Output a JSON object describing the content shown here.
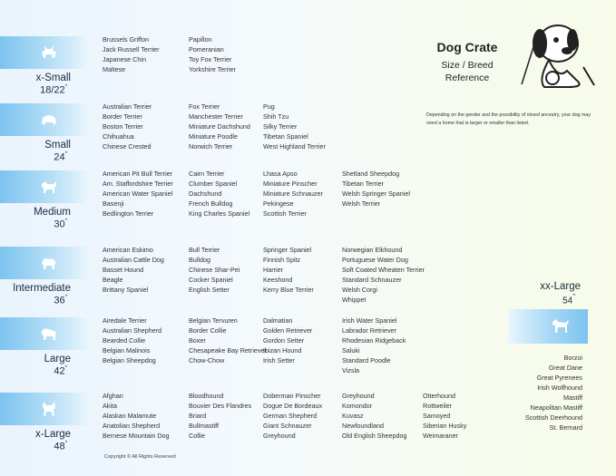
{
  "title": {
    "main": "Dog Crate",
    "sub1": "Size / Breed",
    "sub2": "Reference"
  },
  "note": "Depending on the gender and the possibility of mixed ancestry, your dog may need a home that is larger or smaller than listed.",
  "copyright": "Copyright © All Rights Reserved",
  "sizes": [
    {
      "label": "x-Small",
      "inches": "18/22",
      "icon": "papillon-silhouette-icon",
      "columns": [
        [
          "Brussels Griffon",
          "Jack Russell Terrier",
          "Japanese Chin",
          "Maltese"
        ],
        [
          "Papillon",
          "Pomeranian",
          "Toy Fox Terrier",
          "Yorkshire Terrier"
        ]
      ]
    },
    {
      "label": "Small",
      "inches": "24",
      "icon": "maltese-silhouette-icon",
      "columns": [
        [
          "Australian Terrier",
          "Border Terrier",
          "Boston Terrier",
          "Chihuahua",
          "Chinese Crested"
        ],
        [
          "Fox Terrier",
          "Manchester Terrier",
          "Miniature Dachshund",
          "Miniature Poodle",
          "Norwich Terrier"
        ],
        [
          "Pug",
          "Shih Tzu",
          "Silky Terrier",
          "Tibetan Spaniel",
          "West Highland Terrier"
        ]
      ]
    },
    {
      "label": "Medium",
      "inches": "30",
      "icon": "terrier-silhouette-icon",
      "columns": [
        [
          "American Pit Bull Terrier",
          "Am. Staffordshire Terrier",
          "American Water Spaniel",
          "Basenji",
          "Bedlington Terrier"
        ],
        [
          "Cairn Terrier",
          "Clumber Spaniel",
          "Dachshund",
          "French Bulldog",
          "King Charles Spaniel"
        ],
        [
          "Lhasa Apso",
          "Miniature Pinscher",
          "Miniature Schnauzer",
          "Pekingese",
          "Scottish Terrier"
        ],
        [
          "Shetland Sheepdog",
          "Tibetan Terrier",
          "Welsh Springer Spaniel",
          "Welsh Terrier"
        ]
      ]
    },
    {
      "label": "Intermediate",
      "inches": "36",
      "icon": "poodle-silhouette-icon",
      "columns": [
        [
          "American Eskimo",
          "Australian Cattle Dog",
          "Basset Hound",
          "Beagle",
          "Brittany Spaniel"
        ],
        [
          "Bull Terrier",
          "Bulldog",
          "Chinese Shar-Pei",
          "Cocker Spaniel",
          "English Setter"
        ],
        [
          "Springer Spaniel",
          "Finnish Spitz",
          "Harrier",
          "Keeshond",
          "Kerry Blue Terrier"
        ],
        [
          "Norwegian Elkhound",
          "Portuguese Water Dog",
          "Soft Coated Wheaten Terrier",
          "Standard Schnauzer",
          "Welsh Corgi",
          "Whippet"
        ]
      ]
    },
    {
      "label": "Large",
      "inches": "42",
      "icon": "retriever-silhouette-icon",
      "columns": [
        [
          "Airedale Terrier",
          "Australian Shepherd",
          "Bearded Collie",
          "Belgian Malinois",
          "Belgian Sheepdog"
        ],
        [
          "Belgian Tervuren",
          "Border Collie",
          "Boxer",
          "Chesapeake Bay Retriever",
          "Chow-Chow"
        ],
        [
          "Dalmatian",
          "Golden Retriever",
          "Gordon Setter",
          "Ibizan Hound",
          "Irish Setter"
        ],
        [
          "Irish Water Spaniel",
          "Labrador Retriever",
          "Rhodesian Ridgeback",
          "Saluki",
          "Standard Poodle",
          "Vizsla"
        ]
      ]
    },
    {
      "label": "x-Large",
      "inches": "48",
      "icon": "husky-silhouette-icon",
      "columns": [
        [
          "Afghan",
          "Akita",
          "Alaskan Malamute",
          "Anatolian Shepherd",
          "Bernese Mountain Dog"
        ],
        [
          "Bloodhound",
          "Bouvier Des Flandres",
          "Briard",
          "Bullmastiff",
          "Collie"
        ],
        [
          "Doberman Pinscher",
          "Dogue De Bordeaux",
          "German Shepherd",
          "Giant Schnauzer",
          "Greyhound"
        ],
        [
          "Greyhound",
          "Komondor",
          "Kuvasz",
          "Newfoundland",
          "Old English Sheepdog"
        ],
        [
          "Otterhound",
          "Rottweiler",
          "Samoyed",
          "Siberian Husky",
          "Weimaraner"
        ]
      ]
    }
  ],
  "xxl": {
    "label": "xx-Large",
    "inches": "54",
    "icon": "great-dane-silhouette-icon",
    "breeds": [
      "Borzoi",
      "Great Dane",
      "Great Pyrenees",
      "Irish Wolfhound",
      "Mastiff",
      "Neapolitan Mastiff",
      "Scottish Deerhound",
      "St. Bernard"
    ]
  }
}
